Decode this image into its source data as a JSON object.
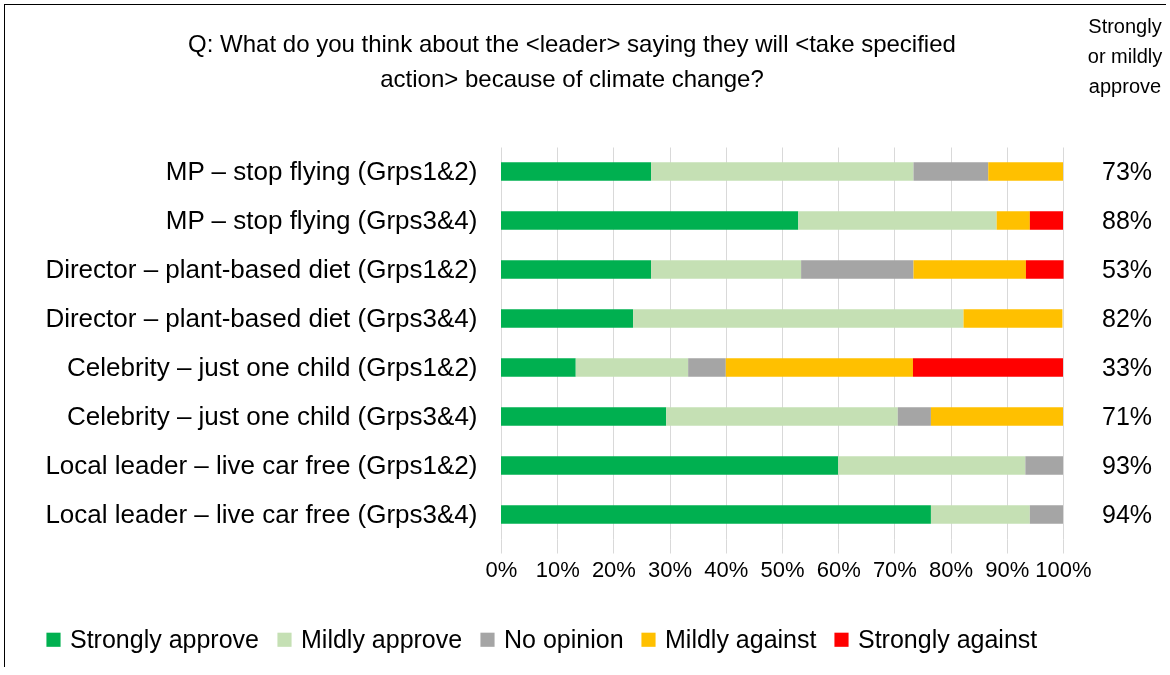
{
  "chart_data": {
    "type": "bar",
    "orientation": "horizontal",
    "stacked": true,
    "title": "Q: What do you think about the <leader> saying they will <take specified action> because of climate change?",
    "categories": [
      "MP – stop flying (Grps1&2)",
      "MP – stop flying (Grps3&4)",
      "Director – plant-based diet (Grps1&2)",
      "Director – plant-based diet (Grps3&4)",
      "Celebrity – just one child (Grps1&2)",
      "Celebrity – just one child (Grps3&4)",
      "Local leader – live car free (Grps1&2)",
      "Local leader – live car free (Grps3&4)"
    ],
    "series": [
      {
        "name": "Strongly approve",
        "color": "#00b050",
        "values": [
          26.7,
          52.9,
          26.7,
          23.5,
          13.3,
          29.4,
          60,
          76.5
        ]
      },
      {
        "name": "Mildly approve",
        "color": "#c5e0b4",
        "values": [
          46.7,
          35.3,
          26.7,
          58.8,
          20,
          41.2,
          33.3,
          17.6
        ]
      },
      {
        "name": "No opinion",
        "color": "#a5a5a5",
        "values": [
          13.3,
          0,
          20,
          0,
          6.7,
          5.9,
          6.7,
          5.9
        ]
      },
      {
        "name": "Mildly against",
        "color": "#ffc000",
        "values": [
          13.3,
          5.9,
          20,
          17.6,
          33.3,
          23.5,
          0,
          0
        ]
      },
      {
        "name": "Strongly against",
        "color": "#ff0000",
        "values": [
          0,
          5.9,
          6.7,
          0,
          26.7,
          0,
          0,
          0
        ]
      }
    ],
    "xlim": [
      0,
      100
    ],
    "xticks": [
      {
        "value": 0,
        "label": "0%"
      },
      {
        "value": 10,
        "label": "10%"
      },
      {
        "value": 20,
        "label": "20%"
      },
      {
        "value": 30,
        "label": "30%"
      },
      {
        "value": 40,
        "label": "40%"
      },
      {
        "value": 50,
        "label": "50%"
      },
      {
        "value": 60,
        "label": "60%"
      },
      {
        "value": 70,
        "label": "70%"
      },
      {
        "value": 80,
        "label": "80%"
      },
      {
        "value": 90,
        "label": "90%"
      },
      {
        "value": 100,
        "label": "100%"
      }
    ],
    "grid": "x",
    "legend": "bottom",
    "annotations": [
      "Strongly or mildly approve",
      "73%",
      "88%",
      "53%",
      "82%",
      "33%",
      "71%",
      "93%",
      "94%"
    ]
  }
}
